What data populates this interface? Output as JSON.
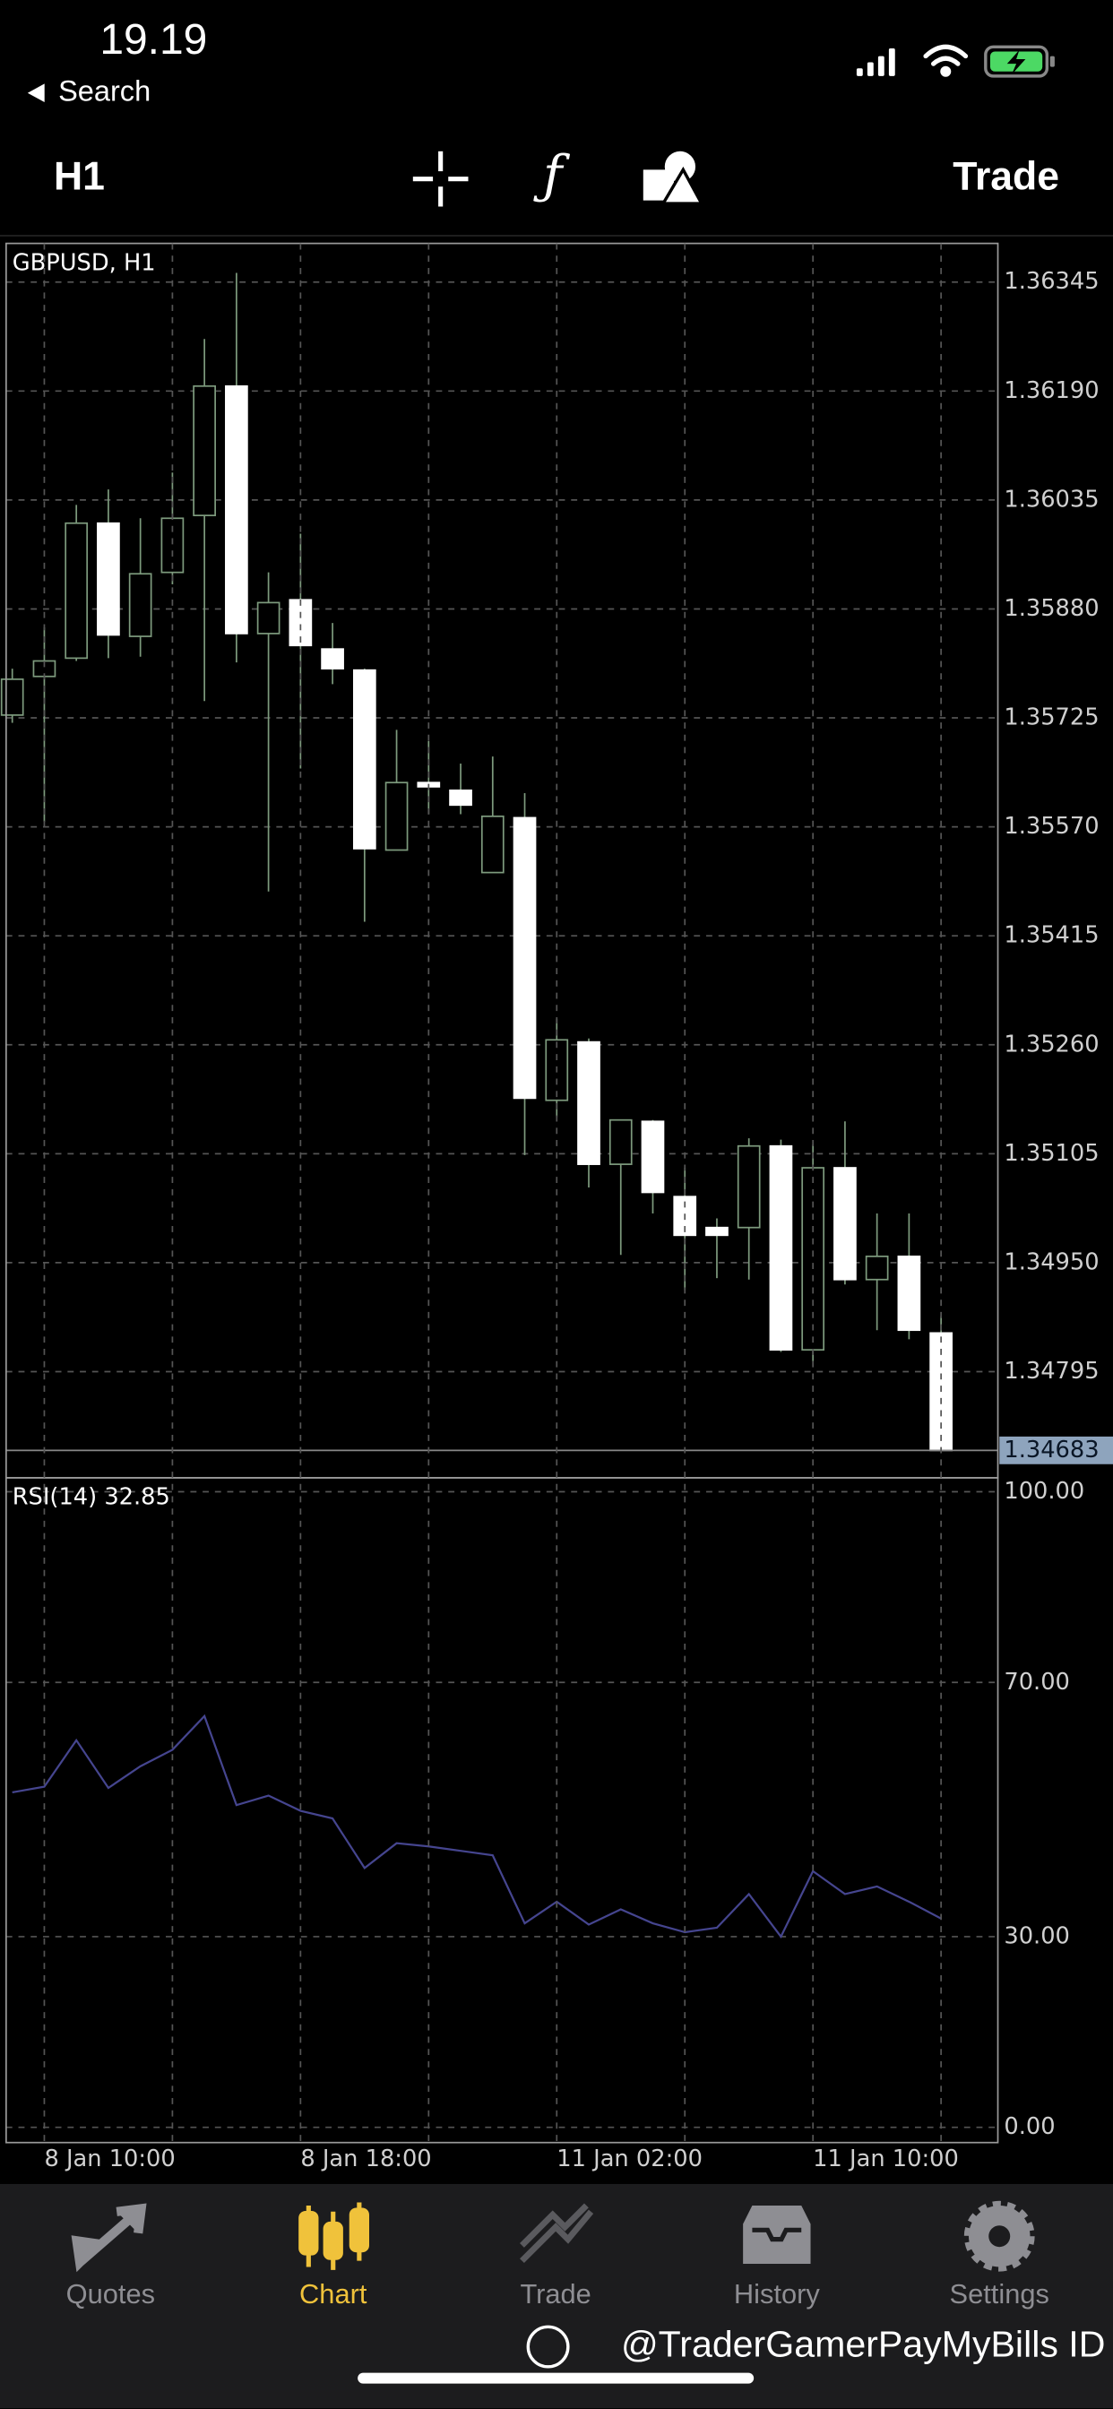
{
  "status_bar": {
    "time": "19.19",
    "back": "Search"
  },
  "toolbar": {
    "timeframe": "H1",
    "action": "Trade"
  },
  "chart_data": [
    {
      "type": "candlestick",
      "title": "GBPUSD, H1",
      "categories": [
        null,
        "8 Jan 10:00",
        null,
        null,
        null,
        null,
        null,
        null,
        null,
        "8 Jan 18:00",
        null,
        null,
        null,
        null,
        null,
        null,
        null,
        "11 Jan 02:00",
        null,
        null,
        null,
        null,
        null,
        null,
        null,
        "11 Jan 10:00",
        null,
        null,
        null,
        null
      ],
      "open": [
        1.35729,
        1.35784,
        1.3581,
        1.36002,
        1.35841,
        1.35932,
        1.36013,
        1.36197,
        1.35845,
        1.35893,
        1.35823,
        1.35793,
        1.35537,
        1.35633,
        1.35622,
        1.35505,
        1.35583,
        1.35181,
        1.35264,
        1.3509,
        1.35151,
        1.35044,
        1.35,
        1.35,
        1.35116,
        1.34826,
        1.35085,
        1.34926,
        1.34959,
        1.3485
      ],
      "high": [
        1.35795,
        1.35854,
        1.36028,
        1.3605,
        1.36009,
        1.36074,
        1.36264,
        1.36358,
        1.35932,
        1.35987,
        1.3586,
        1.35795,
        1.35708,
        1.35692,
        1.3566,
        1.3567,
        1.35618,
        1.35297,
        1.35269,
        1.35153,
        1.35153,
        1.35085,
        1.35013,
        1.35127,
        1.35125,
        1.35118,
        1.35151,
        1.3502,
        1.3502,
        1.34874
      ],
      "low": [
        1.35718,
        1.35577,
        1.35806,
        1.3581,
        1.35812,
        1.35915,
        1.35749,
        1.35804,
        1.35478,
        1.35653,
        1.35773,
        1.35435,
        1.35537,
        1.35588,
        1.35588,
        1.35505,
        1.35103,
        1.35157,
        1.35057,
        1.34961,
        1.3502,
        1.34911,
        1.34928,
        1.34926,
        1.34823,
        1.3481,
        1.34919,
        1.34854,
        1.34841,
        1.34683
      ],
      "close": [
        1.3578,
        1.35806,
        1.36002,
        1.35843,
        1.3593,
        1.36009,
        1.36197,
        1.35845,
        1.35889,
        1.35828,
        1.35795,
        1.35539,
        1.35633,
        1.35627,
        1.35601,
        1.35585,
        1.35184,
        1.35267,
        1.3509,
        1.35153,
        1.3505,
        1.34989,
        1.34989,
        1.35116,
        1.34826,
        1.35085,
        1.34926,
        1.34959,
        1.34854,
        1.34683
      ],
      "last_price": 1.34683,
      "ylim": [
        1.34644,
        1.364
      ],
      "yticks": [
        1.36345,
        {
          "value": 1.3619,
          "label": "1.36190"
        },
        1.36035,
        {
          "value": 1.3588,
          "label": "1.35880"
        },
        1.35725,
        {
          "value": 1.3557,
          "label": "1.35570"
        },
        1.35415,
        {
          "value": 1.3526,
          "label": "1.35260"
        },
        1.35105,
        {
          "value": 1.3495,
          "label": "1.34950"
        },
        1.34795
      ],
      "grid": true,
      "up_fill": "#000000",
      "down_fill": "#ffffff",
      "wick_color": "#7d9a7d"
    },
    {
      "type": "line",
      "title": "RSI(14) 32.85",
      "values": [
        52.7,
        53.6,
        60.9,
        53.4,
        56.8,
        59.4,
        64.7,
        50.7,
        52.2,
        49.8,
        48.6,
        40.8,
        44.7,
        44.2,
        43.5,
        42.8,
        32.1,
        35.5,
        31.9,
        34.3,
        32.1,
        30.7,
        31.4,
        36.7,
        30.0,
        40.3,
        36.7,
        37.9,
        35.5,
        32.85
      ],
      "color": "#45458f",
      "ylim": [
        -2.4,
        102.2
      ],
      "yticks": [
        {
          "value": 100,
          "label": "100.00"
        },
        {
          "value": 70,
          "label": "70.00"
        },
        {
          "value": 30,
          "label": "30.00"
        },
        {
          "value": 0,
          "label": "0.00"
        }
      ],
      "grid": true
    }
  ],
  "tab_bar": {
    "tabs": [
      "Quotes",
      "Chart",
      "Trade",
      "History",
      "Settings"
    ]
  },
  "watermark": "@TraderGamerPayMyBills ID"
}
